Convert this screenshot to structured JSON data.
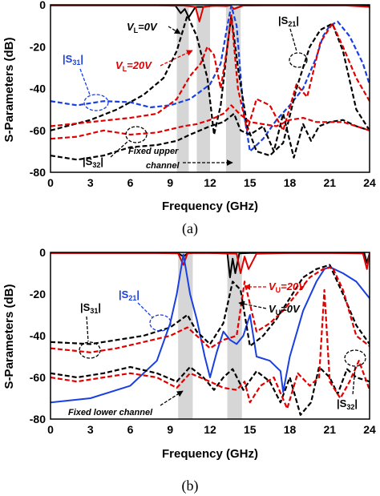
{
  "chart_data": [
    {
      "id": "a",
      "type": "line",
      "caption": "(a)",
      "xlabel": "Frequency (GHz)",
      "ylabel": "S-Parameters (dB)",
      "xlim": [
        0,
        24
      ],
      "ylim": [
        -80,
        0
      ],
      "xticks": [
        0,
        3,
        6,
        9,
        12,
        15,
        18,
        21,
        24
      ],
      "yticks": [
        0,
        -20,
        -40,
        -60,
        -80
      ],
      "bands": [
        [
          9.5,
          10.4
        ],
        [
          11.0,
          12.0
        ],
        [
          13.2,
          14.3
        ]
      ],
      "series": [
        {
          "name": "|S21|",
          "color": "#000000",
          "dash": "solid",
          "x": [
            0,
            8,
            9.4,
            9.8,
            10.1,
            10.4,
            10.9,
            11.4,
            12.5,
            13.2,
            13.5,
            13.8,
            14.4,
            16,
            18,
            20,
            22,
            24
          ],
          "y": [
            -0.3,
            -0.3,
            -0.5,
            -4,
            -2,
            -6,
            -1,
            -1,
            -0.4,
            -0.6,
            -0.3,
            -2,
            -0.4,
            -0.3,
            -0.3,
            -0.3,
            -0.3,
            -0.3
          ]
        },
        {
          "name": "|S21|",
          "color": "#e00000",
          "dash": "solid",
          "x": [
            0,
            8,
            10,
            10.9,
            11.2,
            11.5,
            12.2,
            13.2,
            13.5,
            13.8,
            14.5,
            16,
            18,
            20,
            22,
            24
          ],
          "y": [
            -0.3,
            -0.3,
            -0.4,
            -1,
            -8,
            -1,
            -0.5,
            -0.6,
            -0.3,
            -2,
            -0.4,
            -0.3,
            -0.3,
            -0.4,
            -0.3,
            -1
          ]
        },
        {
          "name": "|S31|",
          "color": "#1a3fe0",
          "dash": "dashed",
          "x": [
            0,
            2,
            4,
            6,
            7.5,
            9,
            10.5,
            12,
            12.8,
            13.3,
            13.6,
            14,
            14.5,
            15,
            16,
            17,
            18,
            19,
            20,
            20.5,
            21,
            21.6,
            22.5,
            23.5,
            24
          ],
          "y": [
            -46,
            -48,
            -46,
            -46.5,
            -49,
            -48,
            -45,
            -38,
            -28,
            -10,
            -0.5,
            -10,
            -50,
            -70,
            -64,
            -55,
            -48,
            -40,
            -25,
            -15,
            -10,
            -8,
            -15,
            -28,
            -38
          ]
        },
        {
          "name": "|S21|",
          "color": "#000000",
          "dash": "dashed",
          "x": [
            0,
            3,
            5,
            7,
            8.5,
            9.5,
            10.3,
            11,
            11.8,
            12.3,
            12.8,
            13.3,
            13.6,
            14.1,
            14.8,
            15.5,
            16.5,
            17.5,
            18.5,
            19.5,
            20.3,
            21.2,
            22,
            23,
            24
          ],
          "y": [
            -60,
            -55,
            -50,
            -43,
            -35,
            -22,
            -5,
            -15,
            -35,
            -62,
            -48,
            -20,
            -5,
            -30,
            -58,
            -70,
            -72,
            -66,
            -40,
            -20,
            -12,
            -9,
            -22,
            -50,
            -60
          ]
        },
        {
          "name": "|S31|",
          "color": "#e00000",
          "dash": "dashed",
          "x": [
            0,
            3,
            6,
            8,
            9.5,
            10.5,
            11.3,
            11.8,
            12.3,
            12.8,
            13.3,
            13.6,
            14.1,
            14.8,
            15.5,
            16.5,
            17.5,
            18.5,
            19.3,
            20.3,
            21.2,
            22,
            23,
            24
          ],
          "y": [
            -58,
            -56,
            -54,
            -52,
            -45,
            -34,
            -28,
            -20,
            -24,
            -40,
            -20,
            -5,
            -40,
            -60,
            -45,
            -48,
            -60,
            -38,
            -44,
            -18,
            -9,
            -20,
            -35,
            -46
          ]
        },
        {
          "name": "|S32|",
          "color": "#000000",
          "dash": "dashed",
          "x": [
            0,
            2,
            4,
            6,
            8,
            9.5,
            10.5,
            12,
            13,
            13.8,
            14.3,
            15,
            16,
            16.8,
            17.5,
            18.3,
            19,
            19.6,
            20.2,
            21,
            22,
            23,
            24
          ],
          "y": [
            -72,
            -74,
            -72,
            -68,
            -67,
            -65,
            -62,
            -58,
            -56,
            -52,
            -60,
            -62,
            -58,
            -70,
            -52,
            -73,
            -57,
            -65,
            -58,
            -56,
            -55,
            -58,
            -60
          ]
        },
        {
          "name": "|S32|",
          "color": "#e00000",
          "dash": "dashed",
          "x": [
            0,
            2,
            4,
            6,
            8,
            10,
            11,
            12,
            13,
            13.6,
            14.2,
            15,
            16,
            17,
            18,
            19,
            20,
            21,
            22,
            23,
            24
          ],
          "y": [
            -64,
            -63,
            -60,
            -62,
            -61,
            -58,
            -57,
            -55,
            -52,
            -48,
            -52,
            -56,
            -57,
            -58,
            -55,
            -54,
            -56,
            -56,
            -56,
            -58,
            -60
          ]
        }
      ],
      "annotations": {
        "vl0_pre": "V",
        "vl0_sub": "L",
        "vl0_post": "=0V",
        "vl20_pre": "V",
        "vl20_sub": "L",
        "vl20_post": "=20V",
        "s21": "|S21|",
        "s31": "|S31|",
        "s32": "|S32|",
        "fixed_line1": "Fixed upper",
        "fixed_line2": "channel"
      }
    },
    {
      "id": "b",
      "type": "line",
      "caption": "(b)",
      "xlabel": "Frequency (GHz)",
      "ylabel": "S-Parameters (dB)",
      "xlim": [
        0,
        24
      ],
      "ylim": [
        -80,
        0
      ],
      "xticks": [
        0,
        3,
        6,
        9,
        12,
        15,
        18,
        21,
        24
      ],
      "yticks": [
        0,
        -20,
        -40,
        -60,
        -80
      ],
      "bands": [
        [
          9.6,
          10.7
        ],
        [
          13.3,
          14.4
        ]
      ],
      "series": [
        {
          "name": "|S31|",
          "color": "#000000",
          "dash": "solid",
          "x": [
            0,
            8,
            9.6,
            10,
            10.3,
            10.6,
            12,
            13.3,
            13.5,
            13.7,
            13.9,
            14.2,
            15,
            18,
            21,
            23.6,
            23.8,
            24
          ],
          "y": [
            -0.3,
            -0.3,
            -0.4,
            -2,
            -0.5,
            -0.3,
            -0.3,
            -0.5,
            -12,
            -3,
            -10,
            -0.5,
            -0.3,
            -0.3,
            -0.3,
            -0.3,
            -5,
            -0.5
          ]
        },
        {
          "name": "|S31|",
          "color": "#e00000",
          "dash": "solid",
          "x": [
            0,
            8,
            9.6,
            10,
            10.3,
            10.6,
            12,
            14,
            14.3,
            14.6,
            14.9,
            15.5,
            18,
            21,
            23.5,
            23.8,
            24
          ],
          "y": [
            -0.3,
            -0.3,
            -0.5,
            -6,
            -0.5,
            -0.3,
            -0.3,
            -0.6,
            -10,
            -2,
            -8,
            -0.6,
            -0.3,
            -0.3,
            -0.5,
            -8,
            -0.5
          ]
        },
        {
          "name": "|S21|",
          "color": "#1a3fe0",
          "dash": "solid",
          "x": [
            0,
            3,
            6,
            8,
            9,
            9.5,
            10,
            10.5,
            11,
            11.6,
            12,
            12.5,
            13,
            13.5,
            14,
            14.5,
            15,
            15.5,
            16.5,
            17.3,
            17.5,
            18,
            19,
            20,
            20.6,
            21,
            22,
            23,
            24
          ],
          "y": [
            -72,
            -70,
            -64,
            -52,
            -34,
            -20,
            -1,
            -20,
            -32,
            -50,
            -60,
            -48,
            -38,
            -42,
            -44,
            -40,
            -30,
            -50,
            -52,
            -57,
            -67,
            -50,
            -28,
            -14,
            -8,
            -7,
            -10,
            -14,
            -22
          ]
        },
        {
          "name": "|S31|",
          "color": "#000000",
          "dash": "dashed",
          "x": [
            0,
            3,
            5,
            7,
            9,
            10.3,
            11,
            12,
            13,
            13.7,
            14.3,
            15,
            16,
            17,
            18,
            19,
            20,
            21,
            22,
            23,
            24
          ],
          "y": [
            -43,
            -44,
            -42,
            -40,
            -36,
            -30,
            -38,
            -44,
            -34,
            -14,
            -18,
            -45,
            -40,
            -32,
            -22,
            -12,
            -8,
            -6,
            -20,
            -35,
            -44
          ]
        },
        {
          "name": "|S31|",
          "color": "#e00000",
          "dash": "dashed",
          "x": [
            0,
            3,
            5,
            7,
            9,
            10.3,
            11,
            12,
            13,
            14,
            14.6,
            15.5,
            16.5,
            17.5,
            18.5,
            19.5,
            20.5,
            21.2,
            22,
            23,
            24
          ],
          "y": [
            -46,
            -48,
            -46,
            -43,
            -40,
            -36,
            -40,
            -46,
            -42,
            -40,
            -14,
            -38,
            -34,
            -28,
            -20,
            -12,
            -8,
            -7,
            -18,
            -40,
            -45
          ]
        },
        {
          "name": "|S32|",
          "color": "#000000",
          "dash": "dashed",
          "x": [
            0,
            2,
            4,
            6,
            8,
            9.5,
            10.5,
            11.5,
            12.3,
            13,
            13.7,
            14.5,
            15.5,
            16.5,
            17.3,
            18,
            18.8,
            19.6,
            20.2,
            21,
            21.6,
            22.3,
            23,
            24
          ],
          "y": [
            -58,
            -60,
            -58,
            -55,
            -58,
            -62,
            -55,
            -60,
            -66,
            -60,
            -56,
            -66,
            -57,
            -62,
            -72,
            -60,
            -78,
            -72,
            -55,
            -60,
            -68,
            -56,
            -60,
            -62
          ]
        },
        {
          "name": "|S32|",
          "color": "#e00000",
          "dash": "dashed",
          "x": [
            0,
            2,
            4,
            6,
            8,
            9.5,
            10.5,
            12,
            13,
            14,
            14.6,
            15,
            15.8,
            16.8,
            17.8,
            18.6,
            19.5,
            20.2,
            20.6,
            21,
            21.8,
            22.5,
            23.2,
            24
          ],
          "y": [
            -60,
            -62,
            -60,
            -58,
            -60,
            -65,
            -58,
            -62,
            -65,
            -66,
            -62,
            -72,
            -64,
            -60,
            -75,
            -58,
            -64,
            -60,
            -18,
            -62,
            -70,
            -62,
            -52,
            -66
          ]
        }
      ],
      "annotations": {
        "vu20_pre": "V",
        "vu20_sub": "U",
        "vu20_post": "=20V",
        "vu0_pre": "V",
        "vu0_sub": "U",
        "vu0_post": "=0V",
        "s21": "|S21|",
        "s31": "|S31|",
        "s32": "|S32|",
        "fixed": "Fixed lower channel"
      }
    }
  ]
}
